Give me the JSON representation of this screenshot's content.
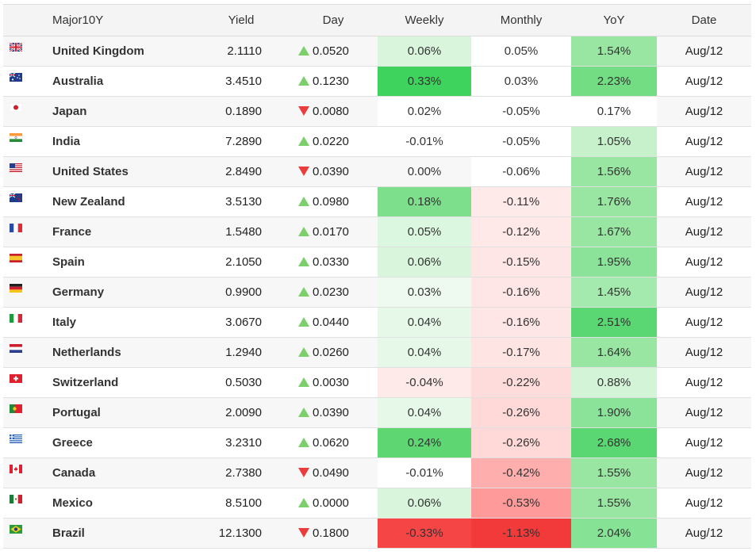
{
  "header": {
    "name_label": "Major10Y",
    "yield_label": "Yield",
    "day_label": "Day",
    "weekly_label": "Weekly",
    "monthly_label": "Monthly",
    "yoy_label": "YoY",
    "date_label": "Date"
  },
  "rows": [
    {
      "flag": "uk-flag-icon",
      "name": "United Kingdom",
      "yield": "2.1110",
      "dir": "up",
      "day": "0.0520",
      "weekly": "0.06%",
      "monthly": "0.05%",
      "yoy": "1.54%",
      "date": "Aug/12",
      "weekly_bg": "#d9f6dc",
      "monthly_bg": "#ffffff",
      "yoy_bg": "#99e6a3"
    },
    {
      "flag": "australia-flag-icon",
      "name": "Australia",
      "yield": "3.4510",
      "dir": "up",
      "day": "0.1230",
      "weekly": "0.33%",
      "monthly": "0.03%",
      "yoy": "2.23%",
      "date": "Aug/12",
      "weekly_bg": "#3dd35c",
      "monthly_bg": "#ffffff",
      "yoy_bg": "#72dd82"
    },
    {
      "flag": "japan-flag-icon",
      "name": "Japan",
      "yield": "0.1890",
      "dir": "down",
      "day": "0.0080",
      "weekly": "0.02%",
      "monthly": "-0.05%",
      "yoy": "0.17%",
      "date": "Aug/12",
      "weekly_bg": "#ffffff",
      "monthly_bg": "#ffffff",
      "yoy_bg": "#ffffff"
    },
    {
      "flag": "india-flag-icon",
      "name": "India",
      "yield": "7.2890",
      "dir": "up",
      "day": "0.0220",
      "weekly": "-0.01%",
      "monthly": "-0.05%",
      "yoy": "1.05%",
      "date": "Aug/12",
      "weekly_bg": "#ffffff",
      "monthly_bg": "#ffffff",
      "yoy_bg": "#c6f1cb"
    },
    {
      "flag": "usa-flag-icon",
      "name": "United States",
      "yield": "2.8490",
      "dir": "down",
      "day": "0.0390",
      "weekly": "0.00%",
      "monthly": "-0.06%",
      "yoy": "1.56%",
      "date": "Aug/12",
      "weekly_bg": "#f7f7f7",
      "monthly_bg": "#ffffff",
      "yoy_bg": "#99e6a3"
    },
    {
      "flag": "new-zealand-flag-icon",
      "name": "New Zealand",
      "yield": "3.5130",
      "dir": "up",
      "day": "0.0980",
      "weekly": "0.18%",
      "monthly": "-0.11%",
      "yoy": "1.76%",
      "date": "Aug/12",
      "weekly_bg": "#7ddf8c",
      "monthly_bg": "#ffeaea",
      "yoy_bg": "#99e6a3"
    },
    {
      "flag": "france-flag-icon",
      "name": "France",
      "yield": "1.5480",
      "dir": "up",
      "day": "0.0170",
      "weekly": "0.05%",
      "monthly": "-0.12%",
      "yoy": "1.67%",
      "date": "Aug/12",
      "weekly_bg": "#dcf7df",
      "monthly_bg": "#ffe8e8",
      "yoy_bg": "#99e6a3"
    },
    {
      "flag": "spain-flag-icon",
      "name": "Spain",
      "yield": "2.1050",
      "dir": "up",
      "day": "0.0330",
      "weekly": "0.06%",
      "monthly": "-0.15%",
      "yoy": "1.95%",
      "date": "Aug/12",
      "weekly_bg": "#d9f6dc",
      "monthly_bg": "#ffe6e6",
      "yoy_bg": "#8ae399"
    },
    {
      "flag": "germany-flag-icon",
      "name": "Germany",
      "yield": "0.9900",
      "dir": "up",
      "day": "0.0230",
      "weekly": "0.03%",
      "monthly": "-0.16%",
      "yoy": "1.45%",
      "date": "Aug/12",
      "weekly_bg": "#eefaef",
      "monthly_bg": "#ffe6e6",
      "yoy_bg": "#a4e9ad"
    },
    {
      "flag": "italy-flag-icon",
      "name": "Italy",
      "yield": "3.0670",
      "dir": "up",
      "day": "0.0440",
      "weekly": "0.04%",
      "monthly": "-0.16%",
      "yoy": "2.51%",
      "date": "Aug/12",
      "weekly_bg": "#e6f9e8",
      "monthly_bg": "#ffe6e6",
      "yoy_bg": "#5ad672"
    },
    {
      "flag": "netherlands-flag-icon",
      "name": "Netherlands",
      "yield": "1.2940",
      "dir": "up",
      "day": "0.0260",
      "weekly": "0.04%",
      "monthly": "-0.17%",
      "yoy": "1.64%",
      "date": "Aug/12",
      "weekly_bg": "#e6f9e8",
      "monthly_bg": "#ffe4e4",
      "yoy_bg": "#99e6a3"
    },
    {
      "flag": "switzerland-flag-icon",
      "name": "Switzerland",
      "yield": "0.5030",
      "dir": "up",
      "day": "0.0030",
      "weekly": "-0.04%",
      "monthly": "-0.22%",
      "yoy": "0.88%",
      "date": "Aug/12",
      "weekly_bg": "#ffeaea",
      "monthly_bg": "#ffdcdc",
      "yoy_bg": "#d3f4d7"
    },
    {
      "flag": "portugal-flag-icon",
      "name": "Portugal",
      "yield": "2.0090",
      "dir": "up",
      "day": "0.0390",
      "weekly": "0.04%",
      "monthly": "-0.26%",
      "yoy": "1.90%",
      "date": "Aug/12",
      "weekly_bg": "#e6f9e8",
      "monthly_bg": "#ffd8d8",
      "yoy_bg": "#8ae399"
    },
    {
      "flag": "greece-flag-icon",
      "name": "Greece",
      "yield": "3.2310",
      "dir": "up",
      "day": "0.0620",
      "weekly": "0.24%",
      "monthly": "-0.26%",
      "yoy": "2.68%",
      "date": "Aug/12",
      "weekly_bg": "#5ed672",
      "monthly_bg": "#ffd8d8",
      "yoy_bg": "#5ad672"
    },
    {
      "flag": "canada-flag-icon",
      "name": "Canada",
      "yield": "2.7380",
      "dir": "down",
      "day": "0.0490",
      "weekly": "-0.01%",
      "monthly": "-0.42%",
      "yoy": "1.55%",
      "date": "Aug/12",
      "weekly_bg": "#ffffff",
      "monthly_bg": "#ffaeae",
      "yoy_bg": "#99e6a3"
    },
    {
      "flag": "mexico-flag-icon",
      "name": "Mexico",
      "yield": "8.5100",
      "dir": "up",
      "day": "0.0000",
      "weekly": "0.06%",
      "monthly": "-0.53%",
      "yoy": "1.55%",
      "date": "Aug/12",
      "weekly_bg": "#d9f6dc",
      "monthly_bg": "#ff9a9a",
      "yoy_bg": "#99e6a3"
    },
    {
      "flag": "brazil-flag-icon",
      "name": "Brazil",
      "yield": "12.1300",
      "dir": "down",
      "day": "0.1800",
      "weekly": "-0.33%",
      "monthly": "-1.13%",
      "yoy": "2.04%",
      "date": "Aug/12",
      "weekly_bg": "#f64545",
      "monthly_bg": "#f23a3a",
      "yoy_bg": "#86e295"
    }
  ]
}
